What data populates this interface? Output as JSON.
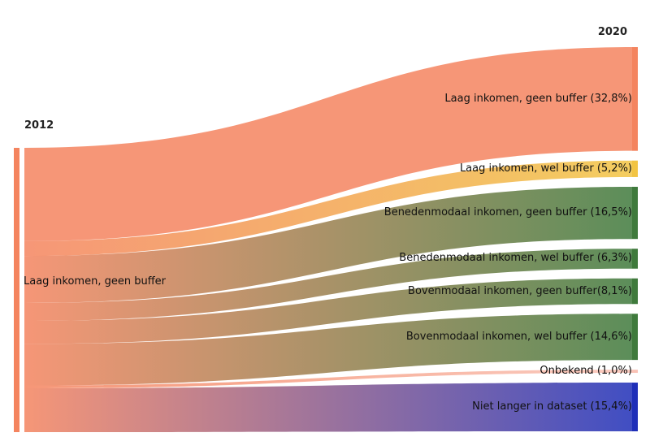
{
  "chart_data": {
    "type": "sankey",
    "left_year": "2012",
    "right_year": "2020",
    "source": {
      "label": "Laag inkomen, geen buffer",
      "color": "#f4845f"
    },
    "targets": [
      {
        "label": "Laag inkomen, geen buffer (32,8%)",
        "value": 32.8,
        "color": "#f4845f"
      },
      {
        "label": "Laag inkomen, wel buffer (5,2%)",
        "value": 5.2,
        "color": "#f2c443"
      },
      {
        "label": "Benedenmodaal inkomen, geen buffer (16,5%)",
        "value": 16.5,
        "color": "#3f7a3c"
      },
      {
        "label": "Benedenmodaal inkomen, wel buffer (6,3%)",
        "value": 6.3,
        "color": "#3f7a3c"
      },
      {
        "label": "Bovenmodaal inkomen, geen buffer(8,1%)",
        "value": 8.1,
        "color": "#3f7a3c"
      },
      {
        "label": "Bovenmodaal inkomen, wel buffer (14,6%)",
        "value": 14.6,
        "color": "#3f7a3c"
      },
      {
        "label": "Onbekend (1,0%)",
        "value": 1.0,
        "color": "#f9c2b5"
      },
      {
        "label": "Niet langer in dataset (15,4%)",
        "value": 15.4,
        "color": "#1f2fb8"
      }
    ]
  }
}
